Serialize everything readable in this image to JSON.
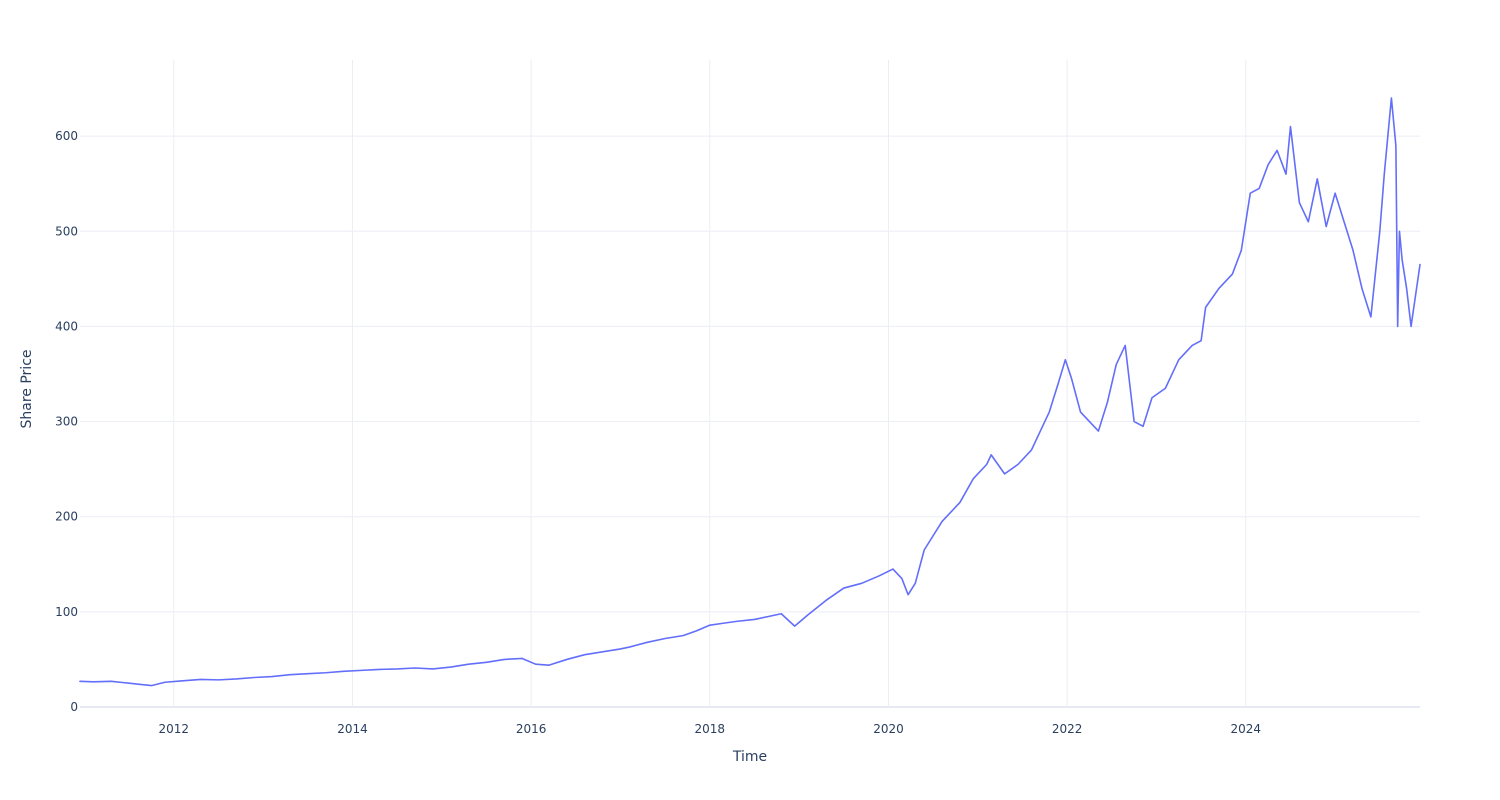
{
  "chart_data": {
    "type": "line",
    "xlabel": "Time",
    "ylabel": "Share Price",
    "x_tick_labels": [
      "2012",
      "2014",
      "2016",
      "2018",
      "2020",
      "2022",
      "2024"
    ],
    "y_tick_labels": [
      "0",
      "100",
      "200",
      "300",
      "400",
      "500",
      "600"
    ],
    "x_ticks": [
      2012,
      2014,
      2016,
      2018,
      2020,
      2022,
      2024
    ],
    "y_ticks": [
      0,
      100,
      200,
      300,
      400,
      500,
      600
    ],
    "xlim": [
      2010.95,
      2025.95
    ],
    "ylim": [
      0,
      680
    ],
    "grid": true,
    "colors": {
      "series": "#636efa",
      "grid": "#eceef5",
      "text": "#2a3f5f"
    },
    "series": [
      {
        "x": [
          2010.95,
          2011.1,
          2011.3,
          2011.45,
          2011.6,
          2011.75,
          2011.9,
          2012.1,
          2012.3,
          2012.5,
          2012.7,
          2012.9,
          2013.1,
          2013.3,
          2013.5,
          2013.7,
          2013.9,
          2014.1,
          2014.3,
          2014.5,
          2014.7,
          2014.9,
          2015.1,
          2015.3,
          2015.5,
          2015.7,
          2015.9,
          2016.05,
          2016.2,
          2016.4,
          2016.6,
          2016.8,
          2017.0,
          2017.1,
          2017.3,
          2017.5,
          2017.7,
          2017.85,
          2018.0,
          2018.15,
          2018.3,
          2018.5,
          2018.65,
          2018.8,
          2018.95,
          2019.1,
          2019.3,
          2019.5,
          2019.7,
          2019.9,
          2020.05,
          2020.15,
          2020.22,
          2020.3,
          2020.4,
          2020.6,
          2020.8,
          2020.95,
          2021.1,
          2021.15,
          2021.3,
          2021.45,
          2021.6,
          2021.7,
          2021.8,
          2021.9,
          2021.98,
          2022.05,
          2022.15,
          2022.25,
          2022.35,
          2022.45,
          2022.55,
          2022.65,
          2022.75,
          2022.85,
          2022.95,
          2023.1,
          2023.25,
          2023.4,
          2023.5,
          2023.55,
          2023.7,
          2023.85,
          2023.95,
          2024.05,
          2024.15,
          2024.25,
          2024.35,
          2024.45,
          2024.5,
          2024.6,
          2024.7,
          2024.8,
          2024.9,
          2025.0,
          2025.1,
          2025.2,
          2025.3,
          2025.4,
          2025.5,
          2025.55,
          2025.6,
          2025.63,
          2025.68,
          2025.7,
          2025.72,
          2025.75,
          2025.8,
          2025.85,
          2025.95
        ],
        "y": [
          27,
          26.5,
          27,
          25.5,
          24,
          22.5,
          26,
          27.5,
          29,
          28.5,
          29.5,
          31,
          32,
          34,
          35,
          36,
          37.5,
          38.5,
          39.5,
          40,
          41,
          40,
          42,
          45,
          47,
          50,
          51,
          45,
          44,
          50,
          55,
          58,
          61,
          63,
          68,
          72,
          75,
          80,
          86,
          88,
          90,
          92,
          95,
          98,
          85,
          97,
          112,
          125,
          130,
          138,
          145,
          135,
          118,
          130,
          165,
          195,
          215,
          240,
          255,
          265,
          245,
          255,
          270,
          290,
          310,
          340,
          365,
          345,
          310,
          300,
          290,
          320,
          360,
          380,
          300,
          295,
          325,
          335,
          365,
          380,
          385,
          420,
          440,
          455,
          480,
          540,
          545,
          570,
          585,
          560,
          610,
          530,
          510,
          555,
          505,
          540,
          510,
          480,
          440,
          410,
          500,
          560,
          610,
          640,
          590,
          400,
          500,
          470,
          440,
          400,
          465
        ]
      }
    ]
  }
}
